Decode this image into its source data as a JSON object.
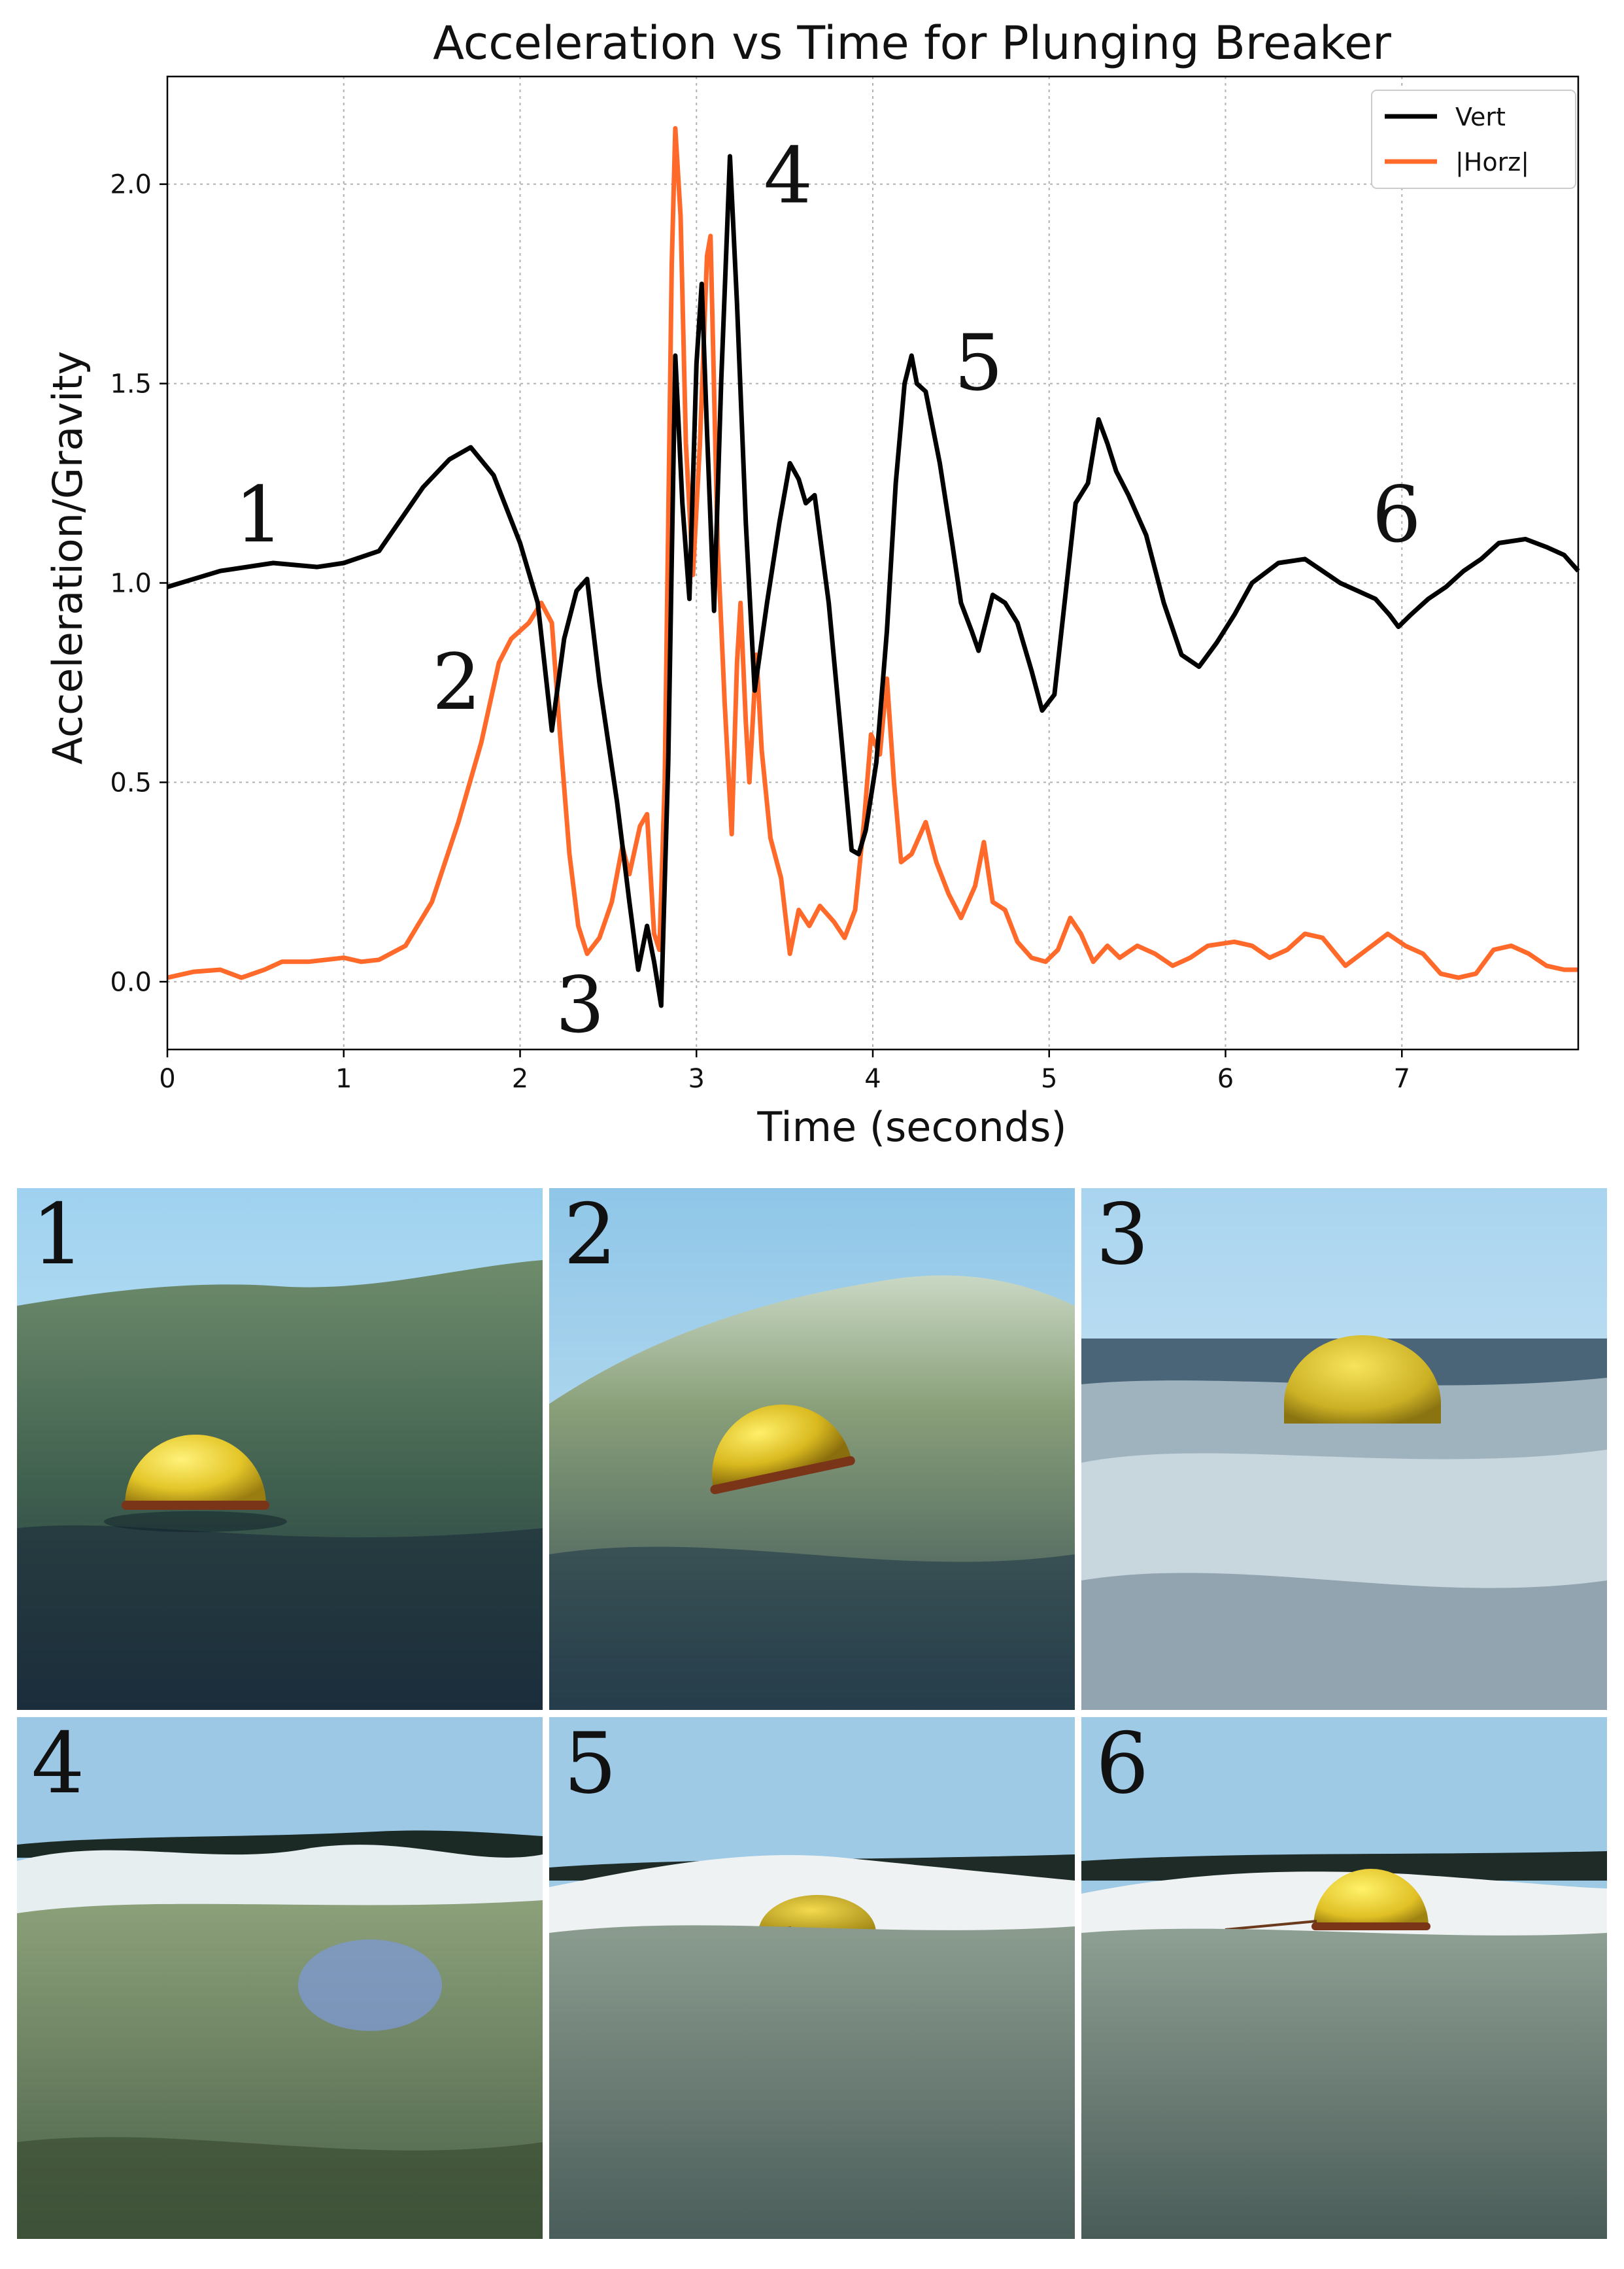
{
  "chart_data": {
    "type": "line",
    "title": "Acceleration vs Time for Plunging Breaker",
    "xlabel": "Time (seconds)",
    "ylabel": "Acceleration/Gravity",
    "xlim": [
      0,
      8
    ],
    "ylim": [
      -0.17,
      2.27
    ],
    "xticks": [
      0,
      1,
      2,
      3,
      4,
      5,
      6,
      7
    ],
    "xtick_labels": [
      "0",
      "1",
      "2",
      "3",
      "4",
      "5",
      "6",
      "7"
    ],
    "yticks": [
      0.0,
      0.5,
      1.0,
      1.5,
      2.0
    ],
    "ytick_labels": [
      "0.0",
      "0.5",
      "1.0",
      "1.5",
      "2.0"
    ],
    "grid": true,
    "legend_position": "top-right",
    "series": [
      {
        "name": "Vert",
        "color": "#000000",
        "points": [
          [
            0,
            0.99
          ],
          [
            0.3,
            1.03
          ],
          [
            0.6,
            1.05
          ],
          [
            0.85,
            1.04
          ],
          [
            1.0,
            1.05
          ],
          [
            1.2,
            1.08
          ],
          [
            1.45,
            1.24
          ],
          [
            1.6,
            1.31
          ],
          [
            1.72,
            1.34
          ],
          [
            1.85,
            1.27
          ],
          [
            2.0,
            1.1
          ],
          [
            2.1,
            0.95
          ],
          [
            2.18,
            0.63
          ],
          [
            2.25,
            0.86
          ],
          [
            2.32,
            0.98
          ],
          [
            2.38,
            1.01
          ],
          [
            2.45,
            0.75
          ],
          [
            2.55,
            0.45
          ],
          [
            2.62,
            0.2
          ],
          [
            2.67,
            0.03
          ],
          [
            2.72,
            0.14
          ],
          [
            2.76,
            0.05
          ],
          [
            2.8,
            -0.06
          ],
          [
            2.84,
            0.55
          ],
          [
            2.88,
            1.57
          ],
          [
            2.92,
            1.2
          ],
          [
            2.96,
            0.96
          ],
          [
            3.0,
            1.55
          ],
          [
            3.03,
            1.75
          ],
          [
            3.06,
            1.38
          ],
          [
            3.1,
            0.93
          ],
          [
            3.14,
            1.5
          ],
          [
            3.19,
            2.07
          ],
          [
            3.23,
            1.7
          ],
          [
            3.28,
            1.15
          ],
          [
            3.33,
            0.73
          ],
          [
            3.4,
            0.95
          ],
          [
            3.47,
            1.15
          ],
          [
            3.53,
            1.3
          ],
          [
            3.58,
            1.26
          ],
          [
            3.62,
            1.2
          ],
          [
            3.67,
            1.22
          ],
          [
            3.75,
            0.95
          ],
          [
            3.82,
            0.62
          ],
          [
            3.88,
            0.33
          ],
          [
            3.92,
            0.32
          ],
          [
            3.96,
            0.38
          ],
          [
            4.02,
            0.55
          ],
          [
            4.08,
            0.88
          ],
          [
            4.13,
            1.25
          ],
          [
            4.18,
            1.5
          ],
          [
            4.22,
            1.57
          ],
          [
            4.25,
            1.5
          ],
          [
            4.3,
            1.48
          ],
          [
            4.38,
            1.3
          ],
          [
            4.45,
            1.1
          ],
          [
            4.5,
            0.95
          ],
          [
            4.56,
            0.88
          ],
          [
            4.6,
            0.83
          ],
          [
            4.68,
            0.97
          ],
          [
            4.75,
            0.95
          ],
          [
            4.82,
            0.9
          ],
          [
            4.9,
            0.78
          ],
          [
            4.96,
            0.68
          ],
          [
            5.03,
            0.72
          ],
          [
            5.1,
            1.0
          ],
          [
            5.15,
            1.2
          ],
          [
            5.22,
            1.25
          ],
          [
            5.28,
            1.41
          ],
          [
            5.33,
            1.35
          ],
          [
            5.38,
            1.28
          ],
          [
            5.45,
            1.22
          ],
          [
            5.55,
            1.12
          ],
          [
            5.65,
            0.95
          ],
          [
            5.75,
            0.82
          ],
          [
            5.85,
            0.79
          ],
          [
            5.95,
            0.85
          ],
          [
            6.05,
            0.92
          ],
          [
            6.15,
            1.0
          ],
          [
            6.3,
            1.05
          ],
          [
            6.45,
            1.06
          ],
          [
            6.55,
            1.03
          ],
          [
            6.65,
            1.0
          ],
          [
            6.75,
            0.98
          ],
          [
            6.85,
            0.96
          ],
          [
            6.93,
            0.92
          ],
          [
            6.98,
            0.89
          ],
          [
            7.05,
            0.92
          ],
          [
            7.15,
            0.96
          ],
          [
            7.25,
            0.99
          ],
          [
            7.35,
            1.03
          ],
          [
            7.45,
            1.06
          ],
          [
            7.55,
            1.1
          ],
          [
            7.7,
            1.11
          ],
          [
            7.82,
            1.09
          ],
          [
            7.92,
            1.07
          ],
          [
            8.0,
            1.03
          ]
        ]
      },
      {
        "name": "|Horz|",
        "color": "#ff6a2b",
        "points": [
          [
            0,
            0.01
          ],
          [
            0.15,
            0.025
          ],
          [
            0.3,
            0.03
          ],
          [
            0.42,
            0.01
          ],
          [
            0.55,
            0.03
          ],
          [
            0.65,
            0.05
          ],
          [
            0.8,
            0.05
          ],
          [
            1.0,
            0.06
          ],
          [
            1.1,
            0.05
          ],
          [
            1.2,
            0.055
          ],
          [
            1.35,
            0.09
          ],
          [
            1.5,
            0.2
          ],
          [
            1.65,
            0.4
          ],
          [
            1.78,
            0.6
          ],
          [
            1.88,
            0.8
          ],
          [
            1.95,
            0.86
          ],
          [
            2.05,
            0.9
          ],
          [
            2.12,
            0.95
          ],
          [
            2.18,
            0.9
          ],
          [
            2.23,
            0.6
          ],
          [
            2.28,
            0.32
          ],
          [
            2.33,
            0.14
          ],
          [
            2.38,
            0.07
          ],
          [
            2.45,
            0.11
          ],
          [
            2.52,
            0.2
          ],
          [
            2.58,
            0.34
          ],
          [
            2.62,
            0.27
          ],
          [
            2.68,
            0.39
          ],
          [
            2.72,
            0.42
          ],
          [
            2.76,
            0.12
          ],
          [
            2.79,
            0.08
          ],
          [
            2.82,
            0.5
          ],
          [
            2.86,
            1.8
          ],
          [
            2.88,
            2.14
          ],
          [
            2.91,
            1.92
          ],
          [
            2.94,
            1.35
          ],
          [
            2.98,
            1.02
          ],
          [
            3.02,
            1.35
          ],
          [
            3.06,
            1.82
          ],
          [
            3.08,
            1.87
          ],
          [
            3.12,
            1.1
          ],
          [
            3.16,
            0.7
          ],
          [
            3.2,
            0.37
          ],
          [
            3.23,
            0.8
          ],
          [
            3.25,
            0.95
          ],
          [
            3.28,
            0.65
          ],
          [
            3.3,
            0.5
          ],
          [
            3.34,
            0.82
          ],
          [
            3.37,
            0.58
          ],
          [
            3.42,
            0.36
          ],
          [
            3.48,
            0.26
          ],
          [
            3.53,
            0.07
          ],
          [
            3.58,
            0.18
          ],
          [
            3.64,
            0.14
          ],
          [
            3.7,
            0.19
          ],
          [
            3.78,
            0.15
          ],
          [
            3.84,
            0.11
          ],
          [
            3.9,
            0.18
          ],
          [
            3.95,
            0.4
          ],
          [
            3.99,
            0.62
          ],
          [
            4.04,
            0.57
          ],
          [
            4.08,
            0.76
          ],
          [
            4.12,
            0.5
          ],
          [
            4.16,
            0.3
          ],
          [
            4.22,
            0.32
          ],
          [
            4.3,
            0.4
          ],
          [
            4.36,
            0.3
          ],
          [
            4.43,
            0.22
          ],
          [
            4.5,
            0.16
          ],
          [
            4.58,
            0.24
          ],
          [
            4.63,
            0.35
          ],
          [
            4.68,
            0.2
          ],
          [
            4.75,
            0.18
          ],
          [
            4.82,
            0.1
          ],
          [
            4.9,
            0.06
          ],
          [
            4.98,
            0.05
          ],
          [
            5.05,
            0.08
          ],
          [
            5.12,
            0.16
          ],
          [
            5.18,
            0.12
          ],
          [
            5.25,
            0.05
          ],
          [
            5.33,
            0.09
          ],
          [
            5.4,
            0.06
          ],
          [
            5.5,
            0.09
          ],
          [
            5.6,
            0.07
          ],
          [
            5.7,
            0.04
          ],
          [
            5.8,
            0.06
          ],
          [
            5.9,
            0.09
          ],
          [
            6.05,
            0.1
          ],
          [
            6.15,
            0.09
          ],
          [
            6.25,
            0.06
          ],
          [
            6.35,
            0.08
          ],
          [
            6.45,
            0.12
          ],
          [
            6.55,
            0.11
          ],
          [
            6.68,
            0.04
          ],
          [
            6.8,
            0.08
          ],
          [
            6.92,
            0.12
          ],
          [
            7.02,
            0.09
          ],
          [
            7.12,
            0.07
          ],
          [
            7.22,
            0.02
          ],
          [
            7.32,
            0.01
          ],
          [
            7.42,
            0.02
          ],
          [
            7.52,
            0.08
          ],
          [
            7.62,
            0.09
          ],
          [
            7.72,
            0.07
          ],
          [
            7.82,
            0.04
          ],
          [
            7.92,
            0.03
          ],
          [
            8.0,
            0.03
          ]
        ]
      }
    ],
    "annotations": [
      {
        "text": "1",
        "x": 0.52,
        "y": 1.17
      },
      {
        "text": "2",
        "x": 1.64,
        "y": 0.75
      },
      {
        "text": "3",
        "x": 2.34,
        "y": -0.06
      },
      {
        "text": "4",
        "x": 3.52,
        "y": 2.02
      },
      {
        "text": "5",
        "x": 4.6,
        "y": 1.55
      },
      {
        "text": "6",
        "x": 6.97,
        "y": 1.17
      }
    ]
  },
  "panels": [
    {
      "label": "1"
    },
    {
      "label": "2"
    },
    {
      "label": "3"
    },
    {
      "label": "4"
    },
    {
      "label": "5"
    },
    {
      "label": "6"
    }
  ]
}
